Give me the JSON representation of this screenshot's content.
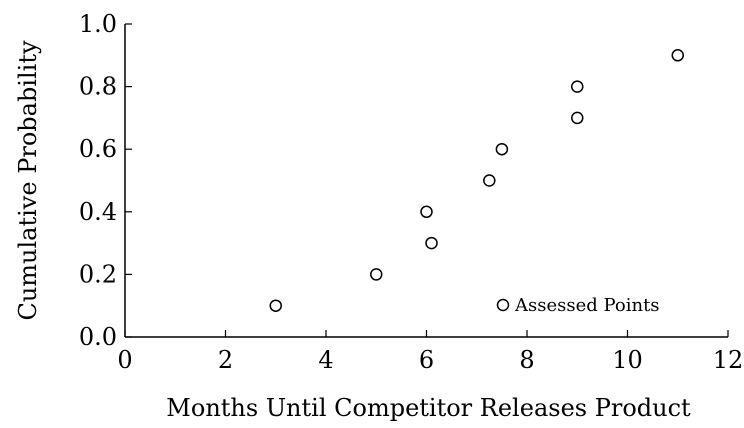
{
  "chart_data": {
    "type": "scatter",
    "title": "",
    "xlabel": "Months Until Competitor Releases Product",
    "ylabel": "Cumulative Probability",
    "xlim": [
      0,
      12
    ],
    "ylim": [
      0,
      1.0
    ],
    "xticks": [
      "0",
      "2",
      "4",
      "6",
      "8",
      "10",
      "12"
    ],
    "yticks": [
      "0.0",
      "0.2",
      "0.4",
      "0.6",
      "0.8",
      "1.0"
    ],
    "grid": false,
    "legend_placement": "bottom-right",
    "series": [
      {
        "name": "Assessed Points",
        "marker": "open-circle",
        "points": [
          {
            "x": 3,
            "y": 0.1
          },
          {
            "x": 5,
            "y": 0.2
          },
          {
            "x": 6.1,
            "y": 0.3
          },
          {
            "x": 6,
            "y": 0.4
          },
          {
            "x": 7.25,
            "y": 0.5
          },
          {
            "x": 7.5,
            "y": 0.6
          },
          {
            "x": 9,
            "y": 0.7
          },
          {
            "x": 9,
            "y": 0.8
          },
          {
            "x": 11,
            "y": 0.9
          }
        ]
      }
    ]
  }
}
